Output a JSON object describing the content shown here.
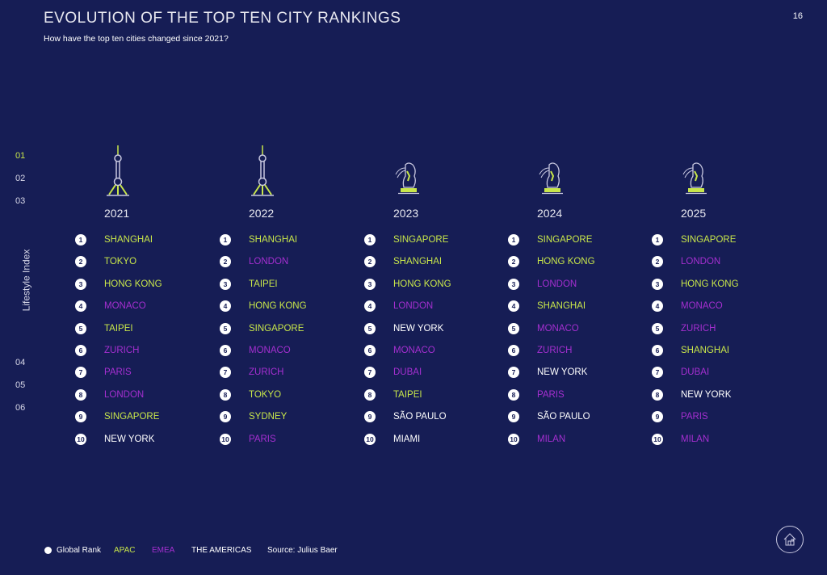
{
  "page": {
    "title": "EVOLUTION OF THE TOP TEN CITY RANKINGS",
    "subtitle": "How have the top ten cities changed since 2021?",
    "page_number": "16"
  },
  "side_nav": {
    "items": [
      "01",
      "02",
      "03",
      "04",
      "05",
      "06"
    ],
    "active": "01",
    "section_label": "Lifestyle Index"
  },
  "colors": {
    "background": "#161d55",
    "APAC": "#c8e64a",
    "EMEA": "#a52fd0",
    "THE AMERICAS": "#ffffff"
  },
  "years": [
    {
      "year": "2021",
      "icon": "oriental-pearl-tower-icon",
      "cities": [
        {
          "rank": "1",
          "name": "SHANGHAI",
          "region": "A"
        },
        {
          "rank": "2",
          "name": "TOKYO",
          "region": "A"
        },
        {
          "rank": "3",
          "name": "HONG KONG",
          "region": "A"
        },
        {
          "rank": "4",
          "name": "MONACO",
          "region": "E"
        },
        {
          "rank": "5",
          "name": "TAIPEI",
          "region": "A"
        },
        {
          "rank": "6",
          "name": "ZURICH",
          "region": "E"
        },
        {
          "rank": "7",
          "name": "PARIS",
          "region": "E"
        },
        {
          "rank": "8",
          "name": "LONDON",
          "region": "E"
        },
        {
          "rank": "9",
          "name": "SINGAPORE",
          "region": "A"
        },
        {
          "rank": "10",
          "name": "NEW YORK",
          "region": "M"
        }
      ]
    },
    {
      "year": "2022",
      "icon": "oriental-pearl-tower-icon",
      "cities": [
        {
          "rank": "1",
          "name": "SHANGHAI",
          "region": "A"
        },
        {
          "rank": "2",
          "name": "LONDON",
          "region": "E"
        },
        {
          "rank": "3",
          "name": "TAIPEI",
          "region": "A"
        },
        {
          "rank": "4",
          "name": "HONG KONG",
          "region": "A"
        },
        {
          "rank": "5",
          "name": "SINGAPORE",
          "region": "A"
        },
        {
          "rank": "6",
          "name": "MONACO",
          "region": "E"
        },
        {
          "rank": "7",
          "name": "ZURICH",
          "region": "E"
        },
        {
          "rank": "8",
          "name": "TOKYO",
          "region": "A"
        },
        {
          "rank": "9",
          "name": "SYDNEY",
          "region": "A"
        },
        {
          "rank": "10",
          "name": "PARIS",
          "region": "E"
        }
      ]
    },
    {
      "year": "2023",
      "icon": "merlion-icon",
      "cities": [
        {
          "rank": "1",
          "name": "SINGAPORE",
          "region": "A"
        },
        {
          "rank": "2",
          "name": "SHANGHAI",
          "region": "A"
        },
        {
          "rank": "3",
          "name": "HONG KONG",
          "region": "A"
        },
        {
          "rank": "4",
          "name": "LONDON",
          "region": "E"
        },
        {
          "rank": "5",
          "name": "NEW YORK",
          "region": "M"
        },
        {
          "rank": "6",
          "name": "MONACO",
          "region": "E"
        },
        {
          "rank": "7",
          "name": "DUBAI",
          "region": "E"
        },
        {
          "rank": "8",
          "name": "TAIPEI",
          "region": "A"
        },
        {
          "rank": "9",
          "name": "SÃO PAULO",
          "region": "M"
        },
        {
          "rank": "10",
          "name": "MIAMI",
          "region": "M"
        }
      ]
    },
    {
      "year": "2024",
      "icon": "merlion-icon",
      "cities": [
        {
          "rank": "1",
          "name": "SINGAPORE",
          "region": "A"
        },
        {
          "rank": "2",
          "name": "HONG KONG",
          "region": "A"
        },
        {
          "rank": "3",
          "name": "LONDON",
          "region": "E"
        },
        {
          "rank": "4",
          "name": "SHANGHAI",
          "region": "A"
        },
        {
          "rank": "5",
          "name": "MONACO",
          "region": "E"
        },
        {
          "rank": "6",
          "name": "ZURICH",
          "region": "E"
        },
        {
          "rank": "7",
          "name": "NEW YORK",
          "region": "M"
        },
        {
          "rank": "8",
          "name": "PARIS",
          "region": "E"
        },
        {
          "rank": "9",
          "name": "SÃO PAULO",
          "region": "M"
        },
        {
          "rank": "10",
          "name": "MILAN",
          "region": "E"
        }
      ]
    },
    {
      "year": "2025",
      "icon": "merlion-icon",
      "cities": [
        {
          "rank": "1",
          "name": "SINGAPORE",
          "region": "A"
        },
        {
          "rank": "2",
          "name": "LONDON",
          "region": "E"
        },
        {
          "rank": "3",
          "name": "HONG KONG",
          "region": "A"
        },
        {
          "rank": "4",
          "name": "MONACO",
          "region": "E"
        },
        {
          "rank": "5",
          "name": "ZURICH",
          "region": "E"
        },
        {
          "rank": "6",
          "name": "SHANGHAI",
          "region": "A"
        },
        {
          "rank": "7",
          "name": "DUBAI",
          "region": "E"
        },
        {
          "rank": "8",
          "name": "NEW YORK",
          "region": "M"
        },
        {
          "rank": "9",
          "name": "PARIS",
          "region": "E"
        },
        {
          "rank": "10",
          "name": "MILAN",
          "region": "E"
        }
      ]
    }
  ],
  "legend": {
    "global_rank": "Global Rank",
    "apac": "APAC",
    "emea": "EMEA",
    "americas": "THE AMERICAS",
    "source": "Source: Julius Baer"
  },
  "home_icon": "home-icon"
}
